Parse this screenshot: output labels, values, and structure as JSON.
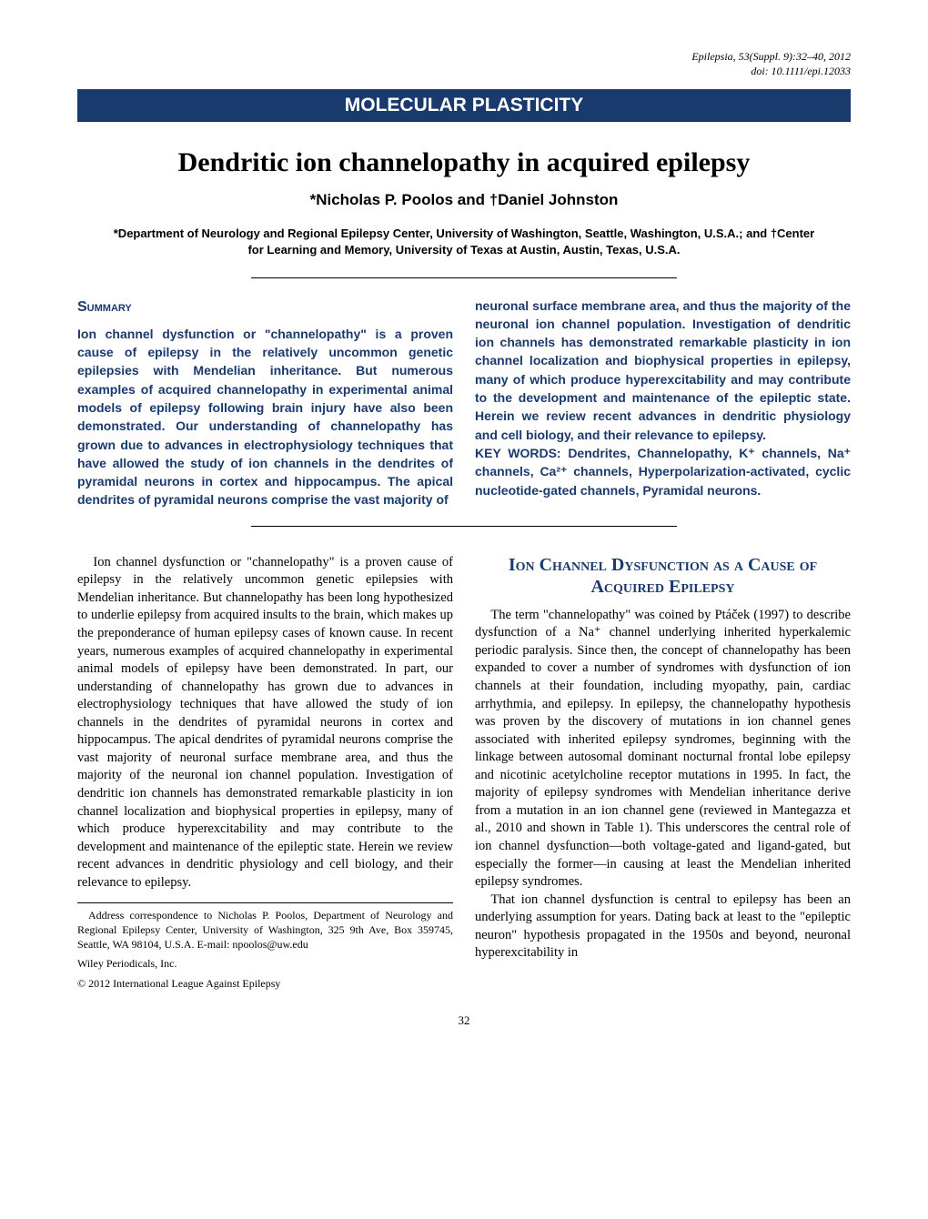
{
  "meta": {
    "journal_line": "Epilepsia, 53(Suppl. 9):32–40, 2012",
    "doi_line": "doi: 10.1111/epi.12033"
  },
  "banner": "MOLECULAR PLASTICITY",
  "title": "Dendritic ion channelopathy in acquired epilepsy",
  "authors": "*Nicholas P. Poolos and †Daniel Johnston",
  "affiliations": "*Department of Neurology and Regional Epilepsy Center, University of Washington, Seattle, Washington, U.S.A.; and †Center for Learning and Memory, University of Texas at Austin, Austin, Texas, U.S.A.",
  "summary": {
    "heading": "Summary",
    "left": "Ion channel dysfunction or \"channelopathy\" is a proven cause of epilepsy in the relatively uncommon genetic epilepsies with Mendelian inheritance. But numerous examples of acquired channelopathy in experimental animal models of epilepsy following brain injury have also been demonstrated. Our understanding of channelopathy has grown due to advances in electrophysiology techniques that have allowed the study of ion channels in the dendrites of pyramidal neurons in cortex and hippocampus. The apical dendrites of pyramidal neurons comprise the vast majority of",
    "right": "neuronal surface membrane area, and thus the majority of the neuronal ion channel population. Investigation of dendritic ion channels has demonstrated remarkable plasticity in ion channel localization and biophysical properties in epilepsy, many of which produce hyperexcitability and may contribute to the development and maintenance of the epileptic state. Herein we review recent advances in dendritic physiology and cell biology, and their relevance to epilepsy.",
    "keywords_label": "KEY WORDS:",
    "keywords": " Dendrites, Channelopathy, K⁺ channels, Na⁺ channels, Ca²⁺ channels, Hyperpolarization-activated, cyclic nucleotide-gated channels, Pyramidal neurons."
  },
  "body": {
    "intro": "Ion channel dysfunction or \"channelopathy\" is a proven cause of epilepsy in the relatively uncommon genetic epilepsies with Mendelian inheritance. But channelopathy has been long hypothesized to underlie epilepsy from acquired insults to the brain, which makes up the preponderance of human epilepsy cases of known cause. In recent years, numerous examples of acquired channelopathy in experimental animal models of epilepsy have been demonstrated. In part, our understanding of channelopathy has grown due to advances in electrophysiology techniques that have allowed the study of ion channels in the dendrites of pyramidal neurons in cortex and hippocampus. The apical dendrites of pyramidal neurons comprise the vast majority of neuronal surface membrane area, and thus the majority of the neuronal ion channel population. Investigation of dendritic ion channels has demonstrated remarkable plasticity in ion channel localization and biophysical properties in epilepsy, many of which produce hyperexcitability and may contribute to the development and maintenance of the epileptic state. Herein we review recent advances in dendritic physiology and cell biology, and their relevance to epilepsy.",
    "section_heading": "Ion Channel Dysfunction as a Cause of Acquired Epilepsy",
    "p1": "The term \"channelopathy\" was coined by Ptáček (1997) to describe dysfunction of a Na⁺ channel underlying inherited hyperkalemic periodic paralysis. Since then, the concept of channelopathy has been expanded to cover a number of syndromes with dysfunction of ion channels at their foundation, including myopathy, pain, cardiac arrhythmia, and epilepsy. In epilepsy, the channelopathy hypothesis was proven by the discovery of mutations in ion channel genes associated with inherited epilepsy syndromes, beginning with the linkage between autosomal dominant nocturnal frontal lobe epilepsy and nicotinic acetylcholine receptor mutations in 1995. In fact, the majority of epilepsy syndromes with Mendelian inheritance derive from a mutation in an ion channel gene (reviewed in Mantegazza et al., 2010 and shown in Table 1). This underscores the central role of ion channel dysfunction—both voltage-gated and ligand-gated, but especially the former—in causing at least the Mendelian inherited epilepsy syndromes.",
    "p2": "That ion channel dysfunction is central to epilepsy has been an underlying assumption for years. Dating back at least to the \"epileptic neuron\" hypothesis propagated in the 1950s and beyond, neuronal hyperexcitability in"
  },
  "footnote": {
    "correspondence": "Address correspondence to Nicholas P. Poolos, Department of Neurology and Regional Epilepsy Center, University of Washington, 325 9th Ave, Box 359745, Seattle, WA 98104, U.S.A. E-mail: npoolos@uw.edu",
    "publisher": "Wiley Periodicals, Inc.",
    "copyright": "© 2012 International League Against Epilepsy"
  },
  "page_number": "32",
  "colors": {
    "banner_bg": "#1a3a6e",
    "banner_text": "#ffffff",
    "accent": "#1a3a6e",
    "text": "#000000"
  }
}
